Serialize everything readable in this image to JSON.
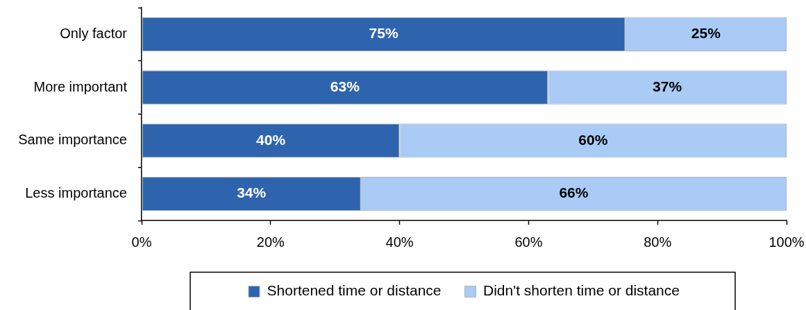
{
  "chart_data": {
    "type": "bar",
    "orientation": "horizontal",
    "stacked": true,
    "categories": [
      "Only factor",
      "More important",
      "Same importance",
      "Less importance"
    ],
    "series": [
      {
        "name": "Shortened time or distance",
        "color": "#2e64ad",
        "values": [
          75,
          63,
          40,
          34
        ],
        "value_labels": [
          "75%",
          "63%",
          "40%",
          "34%"
        ]
      },
      {
        "name": "Didn't shorten time or distance",
        "color": "#a9cbf5",
        "values": [
          25,
          37,
          60,
          66
        ],
        "value_labels": [
          "25%",
          "37%",
          "60%",
          "66%"
        ]
      }
    ],
    "xlim": [
      0,
      100
    ],
    "xticks": [
      {
        "value": 0,
        "label": "0%"
      },
      {
        "value": 20,
        "label": "20%"
      },
      {
        "value": 40,
        "label": "40%"
      },
      {
        "value": 60,
        "label": "60%"
      },
      {
        "value": 80,
        "label": "80%"
      },
      {
        "value": 100,
        "label": "100%"
      }
    ],
    "legend": "bottom"
  }
}
